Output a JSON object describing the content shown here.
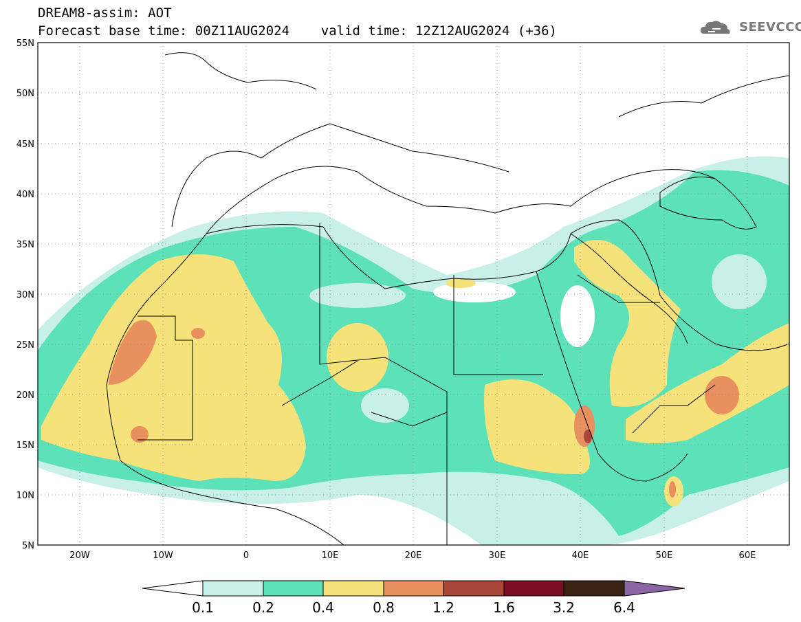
{
  "header": {
    "line1": "DREAM8-assim: AOT",
    "line2": "Forecast base time: 00Z11AUG2024    valid time: 12Z12AUG2024 (+36)"
  },
  "logo": {
    "text": "SEEVCCC",
    "icon": "cloud-logo-icon"
  },
  "map": {
    "projection": "lat-lon",
    "lon_range": [
      -25,
      65
    ],
    "lat_range": [
      5,
      55
    ],
    "lat_labels": [
      "55N",
      "50N",
      "45N",
      "40N",
      "35N",
      "30N",
      "25N",
      "20N",
      "15N",
      "10N",
      "5N"
    ],
    "lon_labels": [
      "20W",
      "10W",
      "0",
      "10E",
      "20E",
      "30E",
      "40E",
      "50E",
      "60E"
    ],
    "grid": "dotted"
  },
  "colorbar": {
    "labels": [
      "0.1",
      "0.2",
      "0.4",
      "0.8",
      "1.2",
      "1.6",
      "3.2",
      "6.4"
    ],
    "colors": [
      "#ffffff",
      "#c8f0e8",
      "#5ce1b8",
      "#f5e27a",
      "#e8905e",
      "#a9483a",
      "#7a0f24",
      "#3a2312",
      "#8a66a6"
    ]
  },
  "chart_data": {
    "type": "heatmap",
    "variable": "AOT",
    "levels": [
      0.1,
      0.2,
      0.4,
      0.8,
      1.2,
      1.6,
      3.2,
      6.4
    ],
    "xlim": [
      -25,
      65
    ],
    "ylim": [
      5,
      55
    ]
  }
}
